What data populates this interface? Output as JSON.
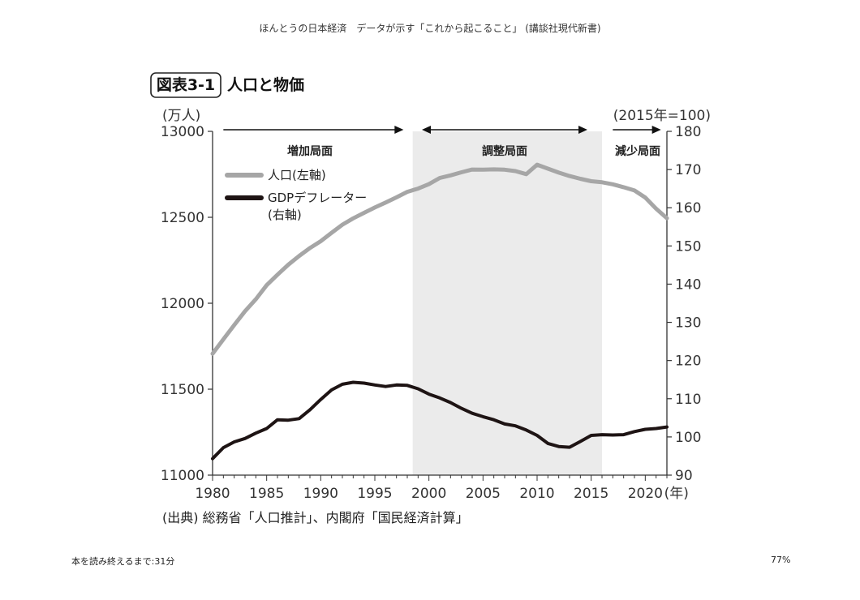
{
  "page": {
    "book_title": "ほんとうの日本経済　データが示す「これから起こること」 (講談社現代新書)",
    "reading_time": "本を読み終えるまで:31分",
    "progress_percent": "77%"
  },
  "chart_data": {
    "type": "line",
    "figure_label": "図表3-1",
    "title": "人口と物価",
    "left_unit": "(万人)",
    "right_unit": "(2015年=100)",
    "x_unit": "(年)",
    "source": "(出典) 総務省「人口推計」、内閣府「国民経済計算」",
    "xlim": [
      1980,
      2022
    ],
    "ylim_left": [
      11000,
      13000
    ],
    "ylim_right": [
      90,
      180
    ],
    "x_ticks": [
      "1980",
      "1985",
      "1990",
      "1995",
      "2000",
      "2005",
      "2010",
      "2015",
      "2020"
    ],
    "y_ticks_left": [
      "13000",
      "12500",
      "12000",
      "11500",
      "11000"
    ],
    "y_ticks_right": [
      "180",
      "170",
      "160",
      "150",
      "140",
      "130",
      "120",
      "110",
      "100",
      "90"
    ],
    "shaded_region": [
      1998.5,
      2016
    ],
    "phases": [
      {
        "label": "増加局面",
        "arrow": [
          1981,
          1997.5
        ],
        "dir": "right",
        "label_x": 1989
      },
      {
        "label": "調整局面",
        "arrow": [
          1999.5,
          2014.5
        ],
        "dir": "both",
        "label_x": 2007
      },
      {
        "label": "減少局面",
        "arrow": [
          2017,
          2021.3
        ],
        "dir": "right",
        "label_x": 2019.3
      }
    ],
    "series": [
      {
        "name": "人口(左軸)",
        "axis": "left",
        "color": "#a6a6a6",
        "x": [
          1980,
          1981,
          1982,
          1983,
          1984,
          1985,
          1986,
          1987,
          1988,
          1989,
          1990,
          1991,
          1992,
          1993,
          1994,
          1995,
          1996,
          1997,
          1998,
          1999,
          2000,
          2001,
          2002,
          2003,
          2004,
          2005,
          2006,
          2007,
          2008,
          2009,
          2010,
          2011,
          2012,
          2013,
          2014,
          2015,
          2016,
          2017,
          2018,
          2019,
          2020,
          2021,
          2022
        ],
        "values": [
          11706,
          11790,
          11873,
          11954,
          12023,
          12105,
          12166,
          12224,
          12275,
          12321,
          12361,
          12410,
          12457,
          12494,
          12526,
          12557,
          12586,
          12616,
          12648,
          12667,
          12693,
          12729,
          12744,
          12762,
          12778,
          12777,
          12779,
          12777,
          12769,
          12751,
          12806,
          12783,
          12760,
          12740,
          12724,
          12710,
          12704,
          12692,
          12675,
          12656,
          12615,
          12550,
          12495
        ]
      },
      {
        "name": "GDPデフレーター",
        "legend_line2": "(右軸)",
        "axis": "right",
        "color": "#1e1414",
        "x": [
          1980,
          1981,
          1982,
          1983,
          1984,
          1985,
          1986,
          1987,
          1988,
          1989,
          1990,
          1991,
          1992,
          1993,
          1994,
          1995,
          1996,
          1997,
          1998,
          1999,
          2000,
          2001,
          2002,
          2003,
          2004,
          2005,
          2006,
          2007,
          2008,
          2009,
          2010,
          2011,
          2012,
          2013,
          2014,
          2015,
          2016,
          2017,
          2018,
          2019,
          2020,
          2021,
          2022
        ],
        "values": [
          94.3,
          97.2,
          98.7,
          99.6,
          101.0,
          102.2,
          104.5,
          104.4,
          104.8,
          107.1,
          109.8,
          112.3,
          113.8,
          114.3,
          114.1,
          113.6,
          113.2,
          113.6,
          113.5,
          112.6,
          111.2,
          110.2,
          109.0,
          107.5,
          106.2,
          105.3,
          104.5,
          103.4,
          102.9,
          101.8,
          100.4,
          98.3,
          97.5,
          97.3,
          98.8,
          100.4,
          100.6,
          100.5,
          100.6,
          101.4,
          102.0,
          102.2,
          102.6
        ]
      }
    ]
  }
}
